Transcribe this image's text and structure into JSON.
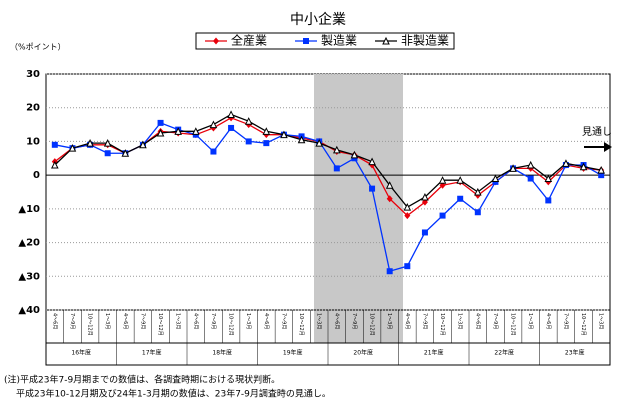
{
  "chart_data": {
    "type": "line",
    "title": "中小企業",
    "y_label": "（%ポイント）",
    "annotation": "見通し",
    "categories": [
      "4～6月",
      "7～9月",
      "10～12月",
      "1～3月",
      "4～6月",
      "7～9月",
      "10～12月",
      "1～3月",
      "4～6月",
      "7～9月",
      "10～12月",
      "1～3月",
      "4～6月",
      "7～9月",
      "10～12月",
      "1～3月",
      "4～6月",
      "7～9月",
      "10～12月",
      "1～3月",
      "4～6月",
      "7～9月",
      "10～12月",
      "1～3月",
      "4～6月",
      "7～9月",
      "10～12月",
      "1～3月",
      "4～6月",
      "7～9月",
      "10～12月",
      "1～3月"
    ],
    "year_groups": [
      "16年度",
      "17年度",
      "18年度",
      "19年度",
      "20年度",
      "21年度",
      "22年度",
      "23年度"
    ],
    "series": [
      {
        "name": "全産業",
        "color": "#e8000b",
        "marker": "diamond",
        "values": [
          4,
          8,
          9,
          9,
          6.5,
          9,
          13,
          12.5,
          12,
          14,
          17,
          15,
          12,
          12,
          11,
          10,
          7,
          6,
          3,
          -7,
          -12,
          -8,
          -3,
          -2,
          -6,
          -2,
          2,
          2,
          -2,
          3,
          2,
          1.5
        ]
      },
      {
        "name": "製造業",
        "color": "#0033ff",
        "marker": "square",
        "values": [
          9,
          8,
          9,
          6.5,
          6.5,
          9,
          15.5,
          13.5,
          12,
          7,
          14,
          10,
          9.5,
          12,
          11.5,
          10,
          2,
          5,
          -4,
          -28.5,
          -27,
          -17,
          -12,
          -7,
          -11,
          -2,
          2,
          -1,
          -7.5,
          3,
          3,
          0
        ]
      },
      {
        "name": "非製造業",
        "color": "#000000",
        "marker": "triangle",
        "values": [
          3,
          8,
          9.5,
          9.5,
          6.5,
          9,
          12.5,
          13,
          13,
          15,
          18,
          16,
          13,
          12,
          10.5,
          9.5,
          7.5,
          6,
          4,
          -3,
          -9.5,
          -6.5,
          -1.5,
          -1.5,
          -5,
          -1,
          2,
          3,
          -1,
          3.5,
          2.5,
          1.5
        ]
      }
    ],
    "ylim": [
      -40,
      30
    ],
    "yticks": [
      30,
      20,
      10,
      0,
      {
        "value": -10,
        "label": "▲10"
      },
      {
        "value": -20,
        "label": "▲20"
      },
      {
        "value": -30,
        "label": "▲30"
      },
      {
        "value": -40,
        "label": "▲40"
      }
    ],
    "grid": true,
    "notes": [
      "(注)平成23年7-9月期までの数値は、各調査時期における現状判断。",
      "平成23年10-12月期及び24年1-3月期の数値は、23年7-9月調査時の見通し。"
    ]
  }
}
